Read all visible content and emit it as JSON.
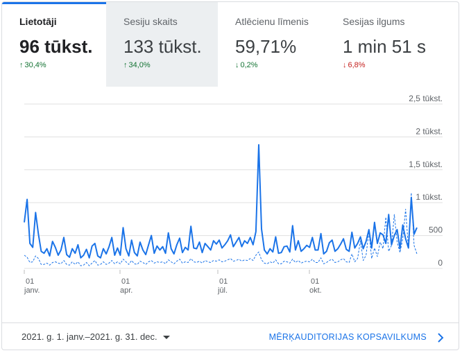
{
  "tabs": [
    {
      "label": "Lietotāji",
      "value": "96 tūkst.",
      "change": "30,4%",
      "direction": "up"
    },
    {
      "label": "Sesiju skaits",
      "value": "133 tūkst.",
      "change": "34,0%",
      "direction": "up"
    },
    {
      "label": "Atlēcienu līmenis",
      "value": "59,71%",
      "change": "0,2%",
      "direction": "down"
    },
    {
      "label": "Sesijas ilgums",
      "value": "1 min 51 s",
      "change": "6,8%",
      "direction": "down"
    }
  ],
  "colors": {
    "accent": "#1a73e8",
    "up": "#137333",
    "down": "#c5221f"
  },
  "chart_data": {
    "type": "line",
    "x_ticks": [
      {
        "day": "01",
        "month": "janv."
      },
      {
        "day": "01",
        "month": "apr."
      },
      {
        "day": "01",
        "month": "jūl."
      },
      {
        "day": "01",
        "month": "okt."
      }
    ],
    "y_ticks": [
      "2,5 tūkst.",
      "2 tūkst.",
      "1,5 tūkst.",
      "1 tūkst.",
      "500",
      "0"
    ],
    "ylim": [
      0,
      2500
    ],
    "grid": true,
    "series": [
      {
        "style": "solid",
        "values": [
          700,
          1050,
          380,
          320,
          850,
          520,
          260,
          230,
          300,
          190,
          410,
          320,
          200,
          280,
          470,
          210,
          170,
          300,
          230,
          360,
          160,
          200,
          290,
          160,
          340,
          380,
          190,
          160,
          300,
          220,
          330,
          470,
          200,
          310,
          200,
          620,
          300,
          190,
          430,
          240,
          190,
          400,
          280,
          210,
          360,
          500,
          230,
          340,
          280,
          330,
          230,
          540,
          300,
          220,
          360,
          460,
          240,
          320,
          280,
          640,
          310,
          300,
          400,
          240,
          380,
          330,
          280,
          420,
          370,
          430,
          310,
          360,
          420,
          510,
          330,
          400,
          470,
          330,
          420,
          380,
          470,
          360,
          560,
          1880,
          600,
          280,
          220,
          300,
          250,
          480,
          230,
          240,
          330,
          340,
          250,
          650,
          280,
          420,
          260,
          300,
          350,
          320,
          470,
          280,
          280,
          530,
          220,
          260,
          390,
          430,
          260,
          300,
          370,
          450,
          290,
          260,
          550,
          310,
          380,
          480,
          300,
          410,
          590,
          310,
          700,
          380,
          540,
          510,
          380,
          820,
          360,
          500,
          590,
          300,
          660,
          450,
          310,
          1080,
          520,
          620
        ]
      },
      {
        "style": "dashed",
        "values": [
          200,
          170,
          90,
          100,
          190,
          150,
          60,
          60,
          80,
          50,
          90,
          100,
          80,
          70,
          120,
          60,
          50,
          100,
          60,
          100,
          40,
          50,
          90,
          40,
          80,
          120,
          50,
          60,
          100,
          60,
          80,
          120,
          70,
          100,
          70,
          140,
          100,
          60,
          120,
          70,
          60,
          110,
          90,
          60,
          100,
          120,
          80,
          100,
          90,
          100,
          70,
          130,
          100,
          70,
          110,
          140,
          80,
          100,
          90,
          150,
          100,
          90,
          110,
          80,
          120,
          100,
          90,
          120,
          110,
          130,
          100,
          110,
          130,
          150,
          110,
          120,
          140,
          110,
          130,
          120,
          150,
          120,
          200,
          250,
          130,
          80,
          70,
          100,
          80,
          130,
          70,
          70,
          110,
          100,
          80,
          140,
          90,
          120,
          80,
          100,
          110,
          100,
          140,
          90,
          90,
          160,
          70,
          90,
          120,
          140,
          90,
          100,
          130,
          150,
          100,
          90,
          220,
          100,
          150,
          420,
          120,
          200,
          560,
          150,
          310,
          180,
          400,
          300,
          780,
          260,
          350,
          820,
          400,
          240,
          450,
          900,
          300,
          1150,
          350,
          220
        ]
      }
    ]
  },
  "footer": {
    "date_range": "2021. g. 1. janv.–2021. g. 31. dec.",
    "audience_link": "MĒRĶAUDITORIJAS KOPSAVILKUMS"
  }
}
